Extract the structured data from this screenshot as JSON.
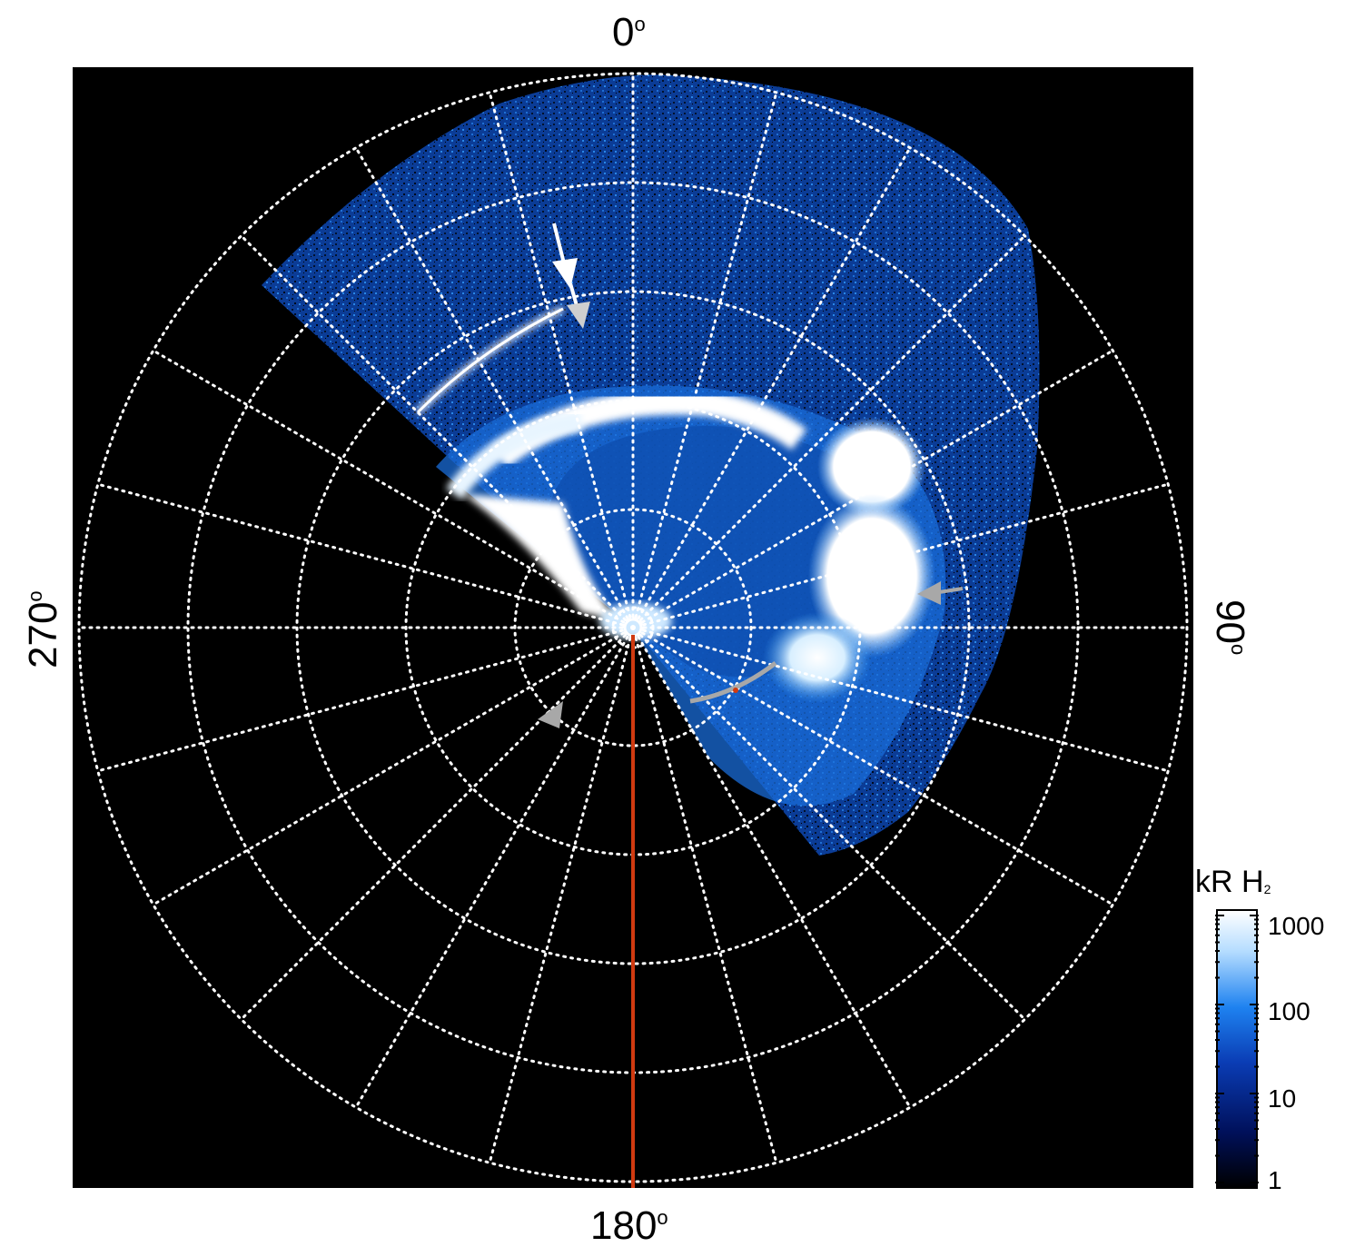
{
  "labels": {
    "top": "0",
    "bottom": "180",
    "left": "270",
    "right": "90",
    "degree_symbol": "o"
  },
  "colorbar": {
    "title_main": "kR H",
    "title_sub": "2",
    "ticks": [
      "1000",
      "100",
      "10",
      "1"
    ],
    "scale": "log",
    "range": [
      1,
      1000
    ],
    "colors": [
      "#000000",
      "#00105a",
      "#0a3cb4",
      "#1e82f0",
      "#b4dcff",
      "#ffffff"
    ]
  },
  "colors": {
    "background": "#000000",
    "grid": "#ffffff",
    "meridian_line": "#d03a10",
    "arrow_white": "#ffffff",
    "arrow_gray": "#a8a8a8"
  }
}
